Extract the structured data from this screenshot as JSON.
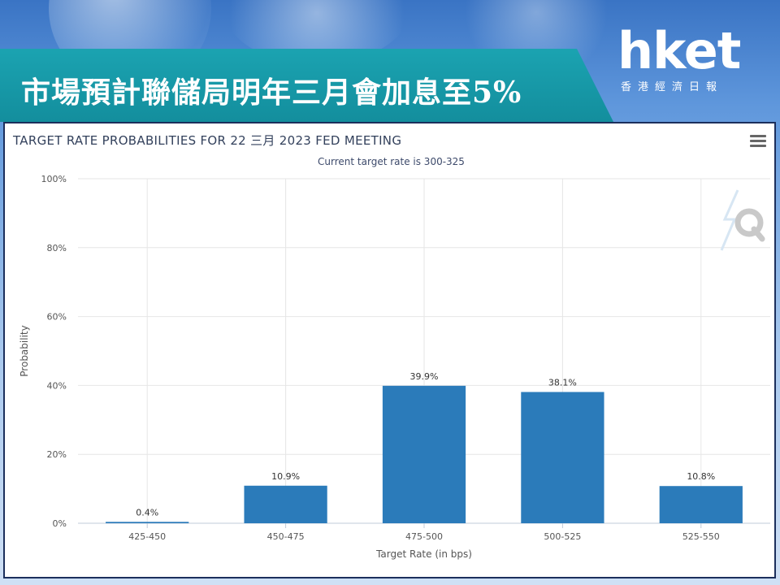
{
  "header": {
    "title": "市場預計聯儲局明年三月會加息至5%",
    "logo_main": "hket",
    "logo_sub": "香港經濟日報"
  },
  "chart_data": {
    "type": "bar",
    "title": "TARGET RATE PROBABILITIES FOR 22 三月 2023 FED MEETING",
    "subtitle": "Current target rate is 300-325",
    "xlabel": "Target Rate (in bps)",
    "ylabel": "Probability",
    "categories": [
      "425-450",
      "450-475",
      "475-500",
      "500-525",
      "525-550"
    ],
    "values": [
      0.4,
      10.9,
      39.9,
      38.1,
      10.8
    ],
    "data_labels": [
      "0.4%",
      "10.9%",
      "39.9%",
      "38.1%",
      "10.8%"
    ],
    "ylim": [
      0,
      100
    ],
    "yticks": [
      0,
      20,
      40,
      60,
      80,
      100
    ],
    "ytick_labels": [
      "0%",
      "20%",
      "40%",
      "60%",
      "80%",
      "100%"
    ],
    "bar_color": "#2b7bba",
    "grid": true,
    "legend": "none"
  },
  "colors": {
    "banner": "#1ba3b1",
    "panel_border": "#1c2f5c"
  },
  "icons": {
    "menu": "hamburger-menu-icon",
    "watermark": "q-watermark-icon"
  }
}
